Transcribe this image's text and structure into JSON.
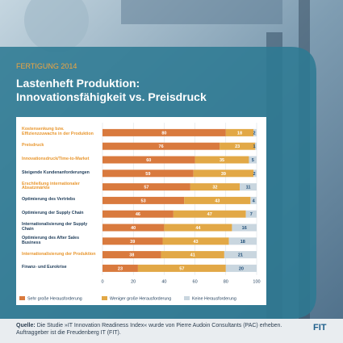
{
  "kicker": "FERTIGUNG 2014",
  "chart_data": {
    "type": "stacked_bar_horizontal",
    "title": [
      "Lastenheft Produktion:",
      "Innovationsfähigkeit vs. Preisdruck"
    ],
    "categories": [
      "Kostensenkung bzw. Effizienzzuwachs in der Produktion",
      "Preisdruck",
      "Innovationsdruck/Time-to-Market",
      "Steigende Kundenanforderungen",
      "Erschließung internationaler Absatzmärkte",
      "Optimierung des Vertriebs",
      "Optimierung der Supply Chain",
      "Internationalisierung der Supply Chain",
      "Optimierung des After Sales Business",
      "Internationalisierung der Produktion",
      "Finanz- und Eurokrise"
    ],
    "highlight": [
      true,
      true,
      true,
      false,
      true,
      false,
      false,
      false,
      false,
      true,
      false
    ],
    "highlight_color": "#e8962e",
    "series": [
      {
        "name": "Sehr große Herausforderung",
        "color": "#d97a3e",
        "label_color": "#ffffff",
        "values": [
          80,
          76,
          60,
          59,
          57,
          53,
          46,
          40,
          39,
          38,
          23
        ]
      },
      {
        "name": "Weniger große Herausforderung",
        "color": "#e2a846",
        "label_color": "#ffffff",
        "values": [
          18,
          23,
          35,
          39,
          32,
          43,
          47,
          44,
          43,
          41,
          57
        ]
      },
      {
        "name": "Keine Herausforderung",
        "color": "#c9d6df",
        "label_color": "#1f4e79",
        "values": [
          2,
          1,
          5,
          2,
          11,
          4,
          7,
          16,
          18,
          21,
          20
        ]
      }
    ],
    "xlim": [
      0,
      100
    ],
    "xticks": [
      0,
      20,
      40,
      60,
      80,
      100
    ],
    "grid": true
  },
  "source": {
    "label": "Quelle:",
    "text": "Die Studie »IT Innovation Readiness Index« wurde von Pierre Audoin Consultants (PAC) erheben. Auftraggeber ist die Freudenberg IT (FIT)."
  },
  "logo": "FIT"
}
